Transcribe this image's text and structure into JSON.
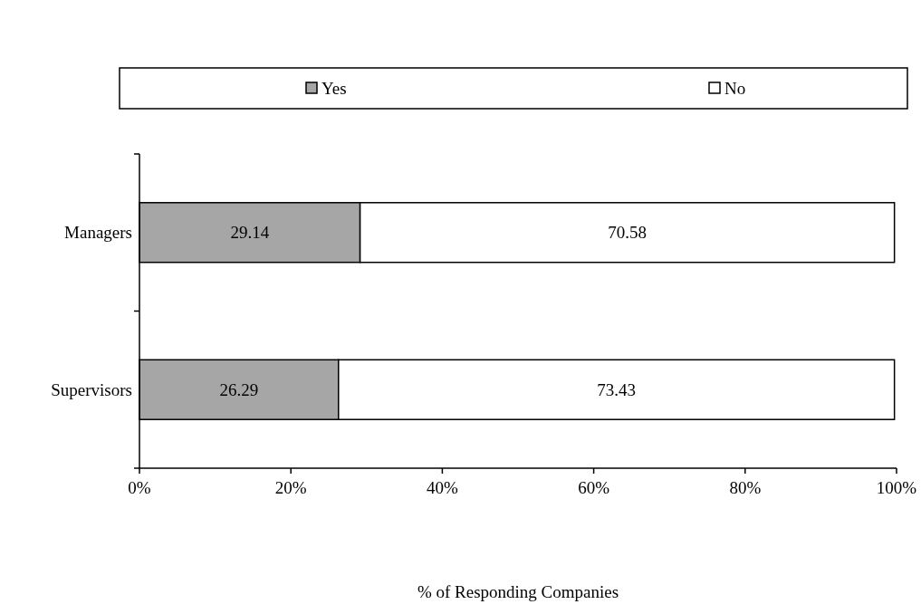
{
  "chart_data": {
    "type": "bar",
    "orientation": "horizontal",
    "stacked": true,
    "xlabel": "% of Responding Companies",
    "categories": [
      "Managers",
      "Supervisors"
    ],
    "series": [
      {
        "name": "Yes",
        "color": "#a6a6a6",
        "values": [
          29.14,
          26.29
        ]
      },
      {
        "name": "No",
        "color": "#ffffff",
        "values": [
          70.58,
          73.43
        ]
      }
    ],
    "xlim": [
      0,
      100
    ],
    "xticks": [
      {
        "value": 0,
        "label": "0%"
      },
      {
        "value": 20,
        "label": "20%"
      },
      {
        "value": 40,
        "label": "40%"
      },
      {
        "value": 60,
        "label": "60%"
      },
      {
        "value": 80,
        "label": "80%"
      },
      {
        "value": 100,
        "label": "100%"
      }
    ],
    "data_labels": true,
    "legend": "top",
    "grid": false
  }
}
